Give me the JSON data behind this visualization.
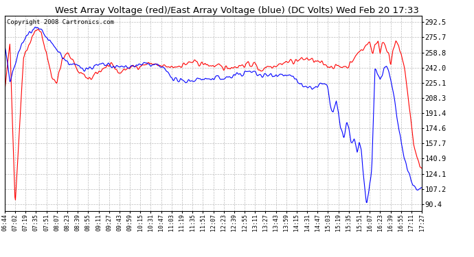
{
  "title": "West Array Voltage (red)/East Array Voltage (blue) (DC Volts) Wed Feb 20 17:33",
  "copyright": "Copyright 2008 Cartronics.com",
  "background_color": "#ffffff",
  "grid_color": "#bbbbbb",
  "yticks": [
    90.4,
    107.2,
    124.1,
    140.9,
    157.7,
    174.6,
    191.4,
    208.3,
    225.1,
    242.0,
    258.8,
    275.7,
    292.5
  ],
  "ylim": [
    83,
    300
  ],
  "x_labels": [
    "06:44",
    "07:02",
    "07:19",
    "07:35",
    "07:51",
    "08:07",
    "08:23",
    "08:39",
    "08:55",
    "09:11",
    "09:27",
    "09:43",
    "09:59",
    "10:15",
    "10:31",
    "10:47",
    "11:03",
    "11:19",
    "11:35",
    "11:51",
    "12:07",
    "12:23",
    "12:39",
    "12:55",
    "13:11",
    "13:27",
    "13:43",
    "13:59",
    "14:15",
    "14:31",
    "14:47",
    "15:03",
    "15:19",
    "15:35",
    "15:51",
    "16:07",
    "16:23",
    "16:39",
    "16:55",
    "17:11",
    "17:27"
  ],
  "red_color": "#ff0000",
  "blue_color": "#0000ff",
  "line_width": 0.8
}
